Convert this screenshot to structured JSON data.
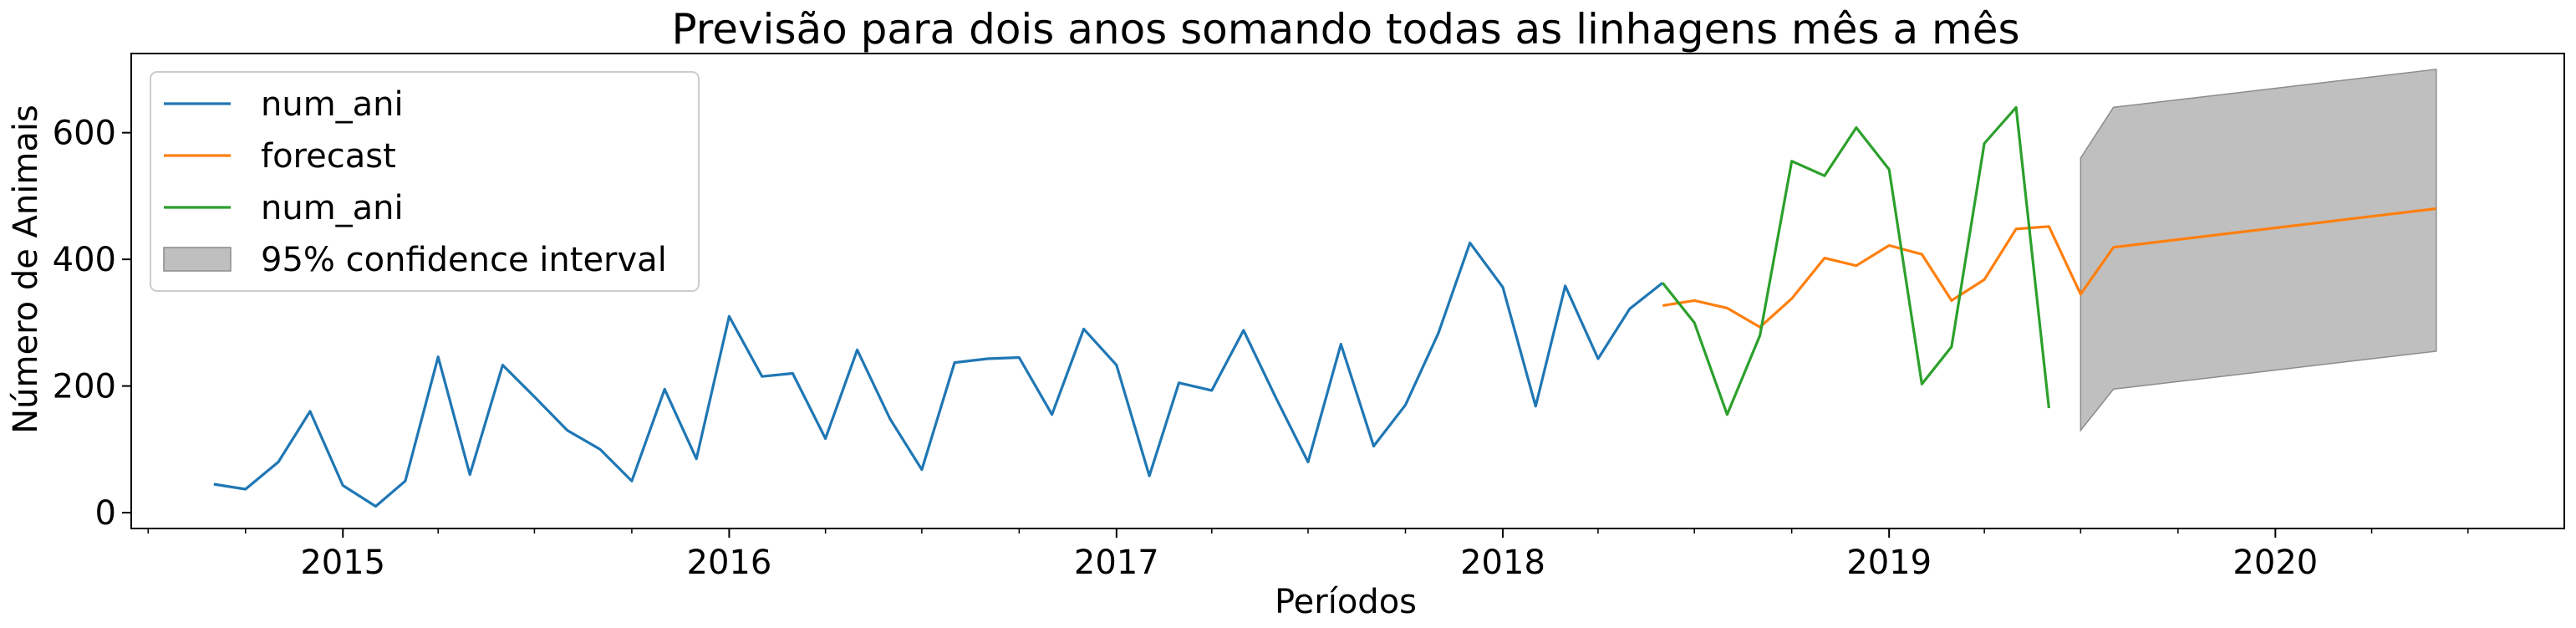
{
  "chart_data": {
    "type": "line",
    "title": "Previsão para dois anos somando todas as linhagens mês a mês",
    "xlabel": "Períodos",
    "ylabel": "Número de Animais",
    "xlim": [
      "2014-06-15",
      "2020-09-30"
    ],
    "ylim": [
      -25,
      725
    ],
    "x_ticks": [
      "2015-01-01",
      "2016-01-01",
      "2017-01-01",
      "2018-01-01",
      "2019-01-01",
      "2020-01-01"
    ],
    "x_tick_labels": [
      "2015",
      "2016",
      "2017",
      "2018",
      "2019",
      "2020"
    ],
    "y_ticks": [
      0,
      200,
      400,
      600
    ],
    "grid": false,
    "legend_position": "top-left",
    "series": [
      {
        "name": "num_ani",
        "color": "#1f77b4",
        "points": [
          [
            "2014-09-01",
            45
          ],
          [
            "2014-10-01",
            37
          ],
          [
            "2014-11-01",
            80
          ],
          [
            "2014-12-01",
            160
          ],
          [
            "2015-01-01",
            43
          ],
          [
            "2015-02-01",
            10
          ],
          [
            "2015-03-01",
            50
          ],
          [
            "2015-04-01",
            246
          ],
          [
            "2015-05-01",
            60
          ],
          [
            "2015-06-01",
            233
          ],
          [
            "2015-07-01",
            183
          ],
          [
            "2015-08-01",
            130
          ],
          [
            "2015-09-01",
            100
          ],
          [
            "2015-10-01",
            50
          ],
          [
            "2015-11-01",
            195
          ],
          [
            "2015-12-01",
            85
          ],
          [
            "2016-01-01",
            310
          ],
          [
            "2016-02-01",
            215
          ],
          [
            "2016-03-01",
            220
          ],
          [
            "2016-04-01",
            117
          ],
          [
            "2016-05-01",
            257
          ],
          [
            "2016-06-01",
            148
          ],
          [
            "2016-07-01",
            68
          ],
          [
            "2016-08-01",
            237
          ],
          [
            "2016-09-01",
            243
          ],
          [
            "2016-10-01",
            245
          ],
          [
            "2016-11-01",
            155
          ],
          [
            "2016-12-01",
            290
          ],
          [
            "2017-01-01",
            233
          ],
          [
            "2017-02-01",
            58
          ],
          [
            "2017-03-01",
            205
          ],
          [
            "2017-04-01",
            193
          ],
          [
            "2017-05-01",
            288
          ],
          [
            "2017-06-01",
            180
          ],
          [
            "2017-07-01",
            80
          ],
          [
            "2017-08-01",
            266
          ],
          [
            "2017-09-01",
            105
          ],
          [
            "2017-10-01",
            170
          ],
          [
            "2017-11-01",
            283
          ],
          [
            "2017-12-01",
            426
          ],
          [
            "2018-01-01",
            356
          ],
          [
            "2018-02-01",
            168
          ],
          [
            "2018-03-01",
            358
          ],
          [
            "2018-04-01",
            243
          ],
          [
            "2018-05-01",
            322
          ],
          [
            "2018-06-01",
            363
          ]
        ]
      },
      {
        "name": "forecast",
        "color": "#ff7f0e",
        "points": [
          [
            "2018-06-01",
            327
          ],
          [
            "2018-07-01",
            335
          ],
          [
            "2018-08-01",
            323
          ],
          [
            "2018-09-01",
            293
          ],
          [
            "2018-10-01",
            338
          ],
          [
            "2018-11-01",
            402
          ],
          [
            "2018-12-01",
            390
          ],
          [
            "2019-01-01",
            422
          ],
          [
            "2019-02-01",
            408
          ],
          [
            "2019-03-01",
            335
          ],
          [
            "2019-04-01",
            368
          ],
          [
            "2019-05-01",
            448
          ],
          [
            "2019-06-01",
            452
          ],
          [
            "2019-07-01",
            345
          ],
          [
            "2019-08-01",
            419
          ],
          [
            "2020-06-01",
            480
          ]
        ]
      },
      {
        "name": "num_ani",
        "color": "#2ca02c",
        "points": [
          [
            "2018-06-01",
            363
          ],
          [
            "2018-07-01",
            300
          ],
          [
            "2018-08-01",
            155
          ],
          [
            "2018-09-01",
            280
          ],
          [
            "2018-10-01",
            555
          ],
          [
            "2018-11-01",
            532
          ],
          [
            "2018-12-01",
            608
          ],
          [
            "2019-01-01",
            542
          ],
          [
            "2019-02-01",
            203
          ],
          [
            "2019-03-01",
            262
          ],
          [
            "2019-04-01",
            583
          ],
          [
            "2019-05-01",
            640
          ],
          [
            "2019-06-01",
            165
          ]
        ]
      }
    ],
    "confidence_interval": {
      "name": "95% confidence interval",
      "color": "#bfbfbf",
      "edge_color": "#8c8c8c",
      "upper": [
        [
          "2019-07-01",
          560
        ],
        [
          "2019-08-01",
          640
        ],
        [
          "2020-06-01",
          700
        ]
      ],
      "lower": [
        [
          "2019-07-01",
          130
        ],
        [
          "2019-08-01",
          195
        ],
        [
          "2020-06-01",
          255
        ]
      ]
    },
    "legend": [
      {
        "label": "num_ani",
        "kind": "line",
        "color": "#1f77b4"
      },
      {
        "label": "forecast",
        "kind": "line",
        "color": "#ff7f0e"
      },
      {
        "label": "num_ani",
        "kind": "line",
        "color": "#2ca02c"
      },
      {
        "label": "95% confidence interval",
        "kind": "patch",
        "color": "#bfbfbf"
      }
    ]
  }
}
